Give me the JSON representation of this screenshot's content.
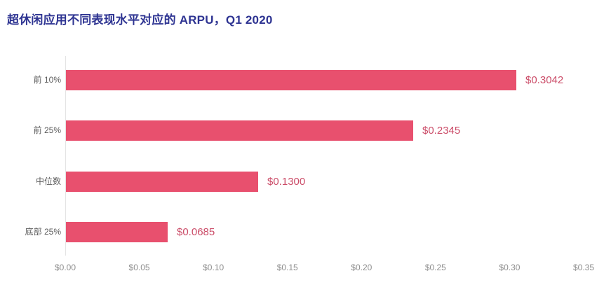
{
  "title": "超休闲应用不同表现水平对应的 ARPU，Q1 2020",
  "colors": {
    "title": "#2E3492",
    "bar": "#E8506E",
    "value_label": "#CB4C68",
    "category_label": "#5B5B5B",
    "axis_label": "#8E8E8E",
    "axis_line": "#E4E4E4",
    "background": "#FFFFFF"
  },
  "chart_data": {
    "type": "bar",
    "orientation": "horizontal",
    "title": "超休闲应用不同表现水平对应的 ARPU，Q1 2020",
    "categories": [
      "前 10%",
      "前 25%",
      "中位数",
      "底部 25%"
    ],
    "values": [
      0.3042,
      0.2345,
      0.13,
      0.0685
    ],
    "value_labels": [
      "$0.3042",
      "$0.2345",
      "$0.1300",
      "$0.0685"
    ],
    "xlabel": "",
    "ylabel": "",
    "xlim": [
      0,
      0.35
    ],
    "x_ticks": [
      "$0.00",
      "$0.05",
      "$0.10",
      "$0.15",
      "$0.20",
      "$0.25",
      "$0.30",
      "$0.35"
    ],
    "grid": false,
    "legend": false
  }
}
